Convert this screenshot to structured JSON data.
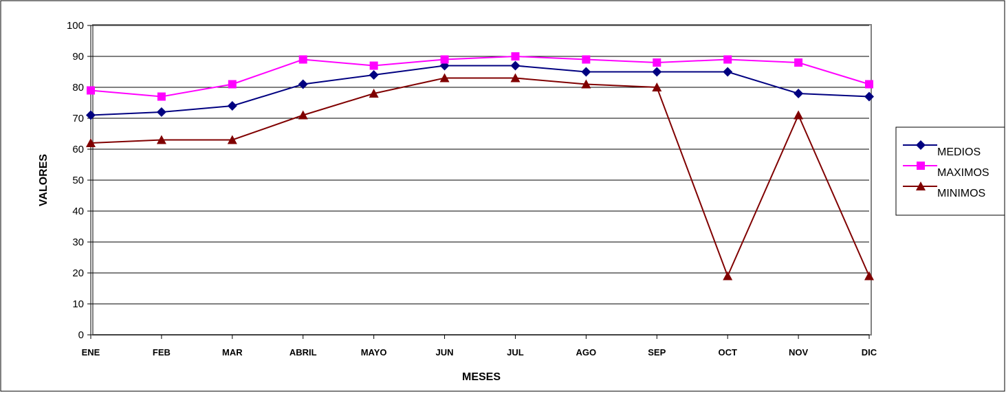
{
  "chart_data": {
    "type": "line",
    "title": "",
    "xlabel": "MESES",
    "ylabel": "VALORES",
    "categories": [
      "ENE",
      "FEB",
      "MAR",
      "ABRIL",
      "MAYO",
      "JUN",
      "JUL",
      "AGO",
      "SEP",
      "OCT",
      "NOV",
      "DIC"
    ],
    "ylim": [
      0,
      100
    ],
    "yticks": [
      0,
      10,
      20,
      30,
      40,
      50,
      60,
      70,
      80,
      90,
      100
    ],
    "grid": "horizontal",
    "legend_position": "right",
    "series": [
      {
        "name": "MEDIOS",
        "color": "#000080",
        "marker": "diamond",
        "values": [
          71,
          72,
          74,
          81,
          84,
          87,
          87,
          85,
          85,
          85,
          78,
          77
        ]
      },
      {
        "name": "MAXIMOS",
        "color": "#FF00FF",
        "marker": "square",
        "values": [
          79,
          77,
          81,
          89,
          87,
          89,
          90,
          89,
          88,
          89,
          88,
          81
        ]
      },
      {
        "name": "MINIMOS",
        "color": "#800000",
        "marker": "triangle",
        "values": [
          62,
          63,
          63,
          71,
          78,
          83,
          83,
          81,
          80,
          19,
          71,
          19
        ]
      }
    ]
  }
}
